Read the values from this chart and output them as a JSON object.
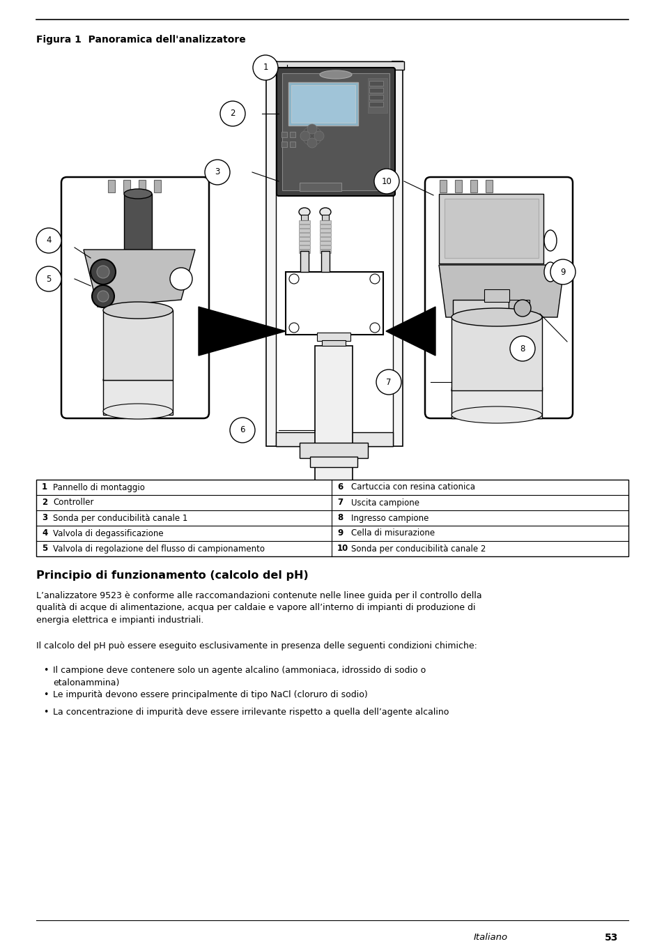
{
  "page_bg": "#ffffff",
  "text_color": "#000000",
  "line_color": "#000000",
  "figure_title": "Figura 1  Panoramica dell’analizzatore",
  "table_rows": [
    [
      "1",
      "Pannello di montaggio",
      "6",
      "Cartuccia con resina cationica"
    ],
    [
      "2",
      "Controller",
      "7",
      "Uscita campione"
    ],
    [
      "3",
      "Sonda per conducibilità canale 1",
      "8",
      "Ingresso campione"
    ],
    [
      "4",
      "Valvola di degassificazione",
      "9",
      "Cella di misurazione"
    ],
    [
      "5",
      "Valvola di regolazione del flusso di campionamento",
      "10",
      "Sonda per conducibilità canale 2"
    ]
  ],
  "section_title": "Principio di funzionamento (calcolo del pH)",
  "para1": "L’analizzatore 9523 è conforme alle raccomandazioni contenute nelle linee guida per il controllo della\nqualità di acque di alimentazione, acqua per caldaie e vapore all’interno di impianti di produzione di\nenergia elettrica e impianti industriali.",
  "para2": "Il calcolo del pH può essere eseguito esclusivamente in presenza delle seguenti condizioni chimiche:",
  "bullets": [
    "Il campione deve contenere solo un agente alcalino (ammoniaca, idrossido di sodio o\netalonammina)",
    "Le impurità devono essere principalmente di tipo NaCl (cloruro di sodio)",
    "La concentrazione di impurità deve essere irrilevante rispetto a quella dell’agente alcalino"
  ]
}
